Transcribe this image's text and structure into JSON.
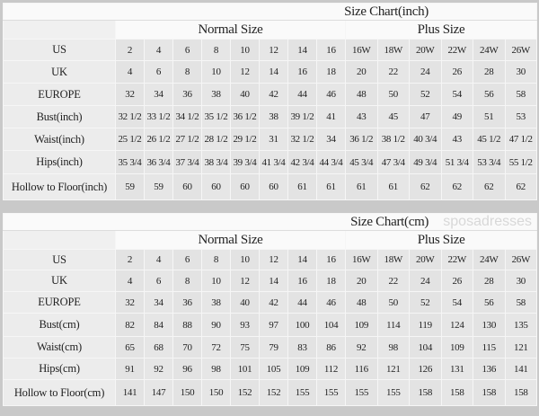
{
  "charts": [
    {
      "title": "Size Chart(inch)",
      "normal_label": "Normal Size",
      "plus_label": "Plus Size",
      "rows": [
        {
          "label": "US",
          "normal": [
            "2",
            "4",
            "6",
            "8",
            "10",
            "12",
            "14",
            "16"
          ],
          "plus": [
            "16W",
            "18W",
            "20W",
            "22W",
            "24W",
            "26W"
          ]
        },
        {
          "label": "UK",
          "normal": [
            "4",
            "6",
            "8",
            "10",
            "12",
            "14",
            "16",
            "18"
          ],
          "plus": [
            "20",
            "22",
            "24",
            "26",
            "28",
            "30"
          ]
        },
        {
          "label": "EUROPE",
          "normal": [
            "32",
            "34",
            "36",
            "38",
            "40",
            "42",
            "44",
            "46"
          ],
          "plus": [
            "48",
            "50",
            "52",
            "54",
            "56",
            "58"
          ]
        },
        {
          "label": "Bust(inch)",
          "normal": [
            "32 1/2",
            "33 1/2",
            "34 1/2",
            "35 1/2",
            "36 1/2",
            "38",
            "39 1/2",
            "41"
          ],
          "plus": [
            "43",
            "45",
            "47",
            "49",
            "51",
            "53"
          ]
        },
        {
          "label": "Waist(inch)",
          "normal": [
            "25 1/2",
            "26 1/2",
            "27 1/2",
            "28 1/2",
            "29 1/2",
            "31",
            "32 1/2",
            "34"
          ],
          "plus": [
            "36 1/2",
            "38 1/2",
            "40 3/4",
            "43",
            "45 1/2",
            "47 1/2"
          ]
        },
        {
          "label": "Hips(inch)",
          "normal": [
            "35 3/4",
            "36 3/4",
            "37 3/4",
            "38 3/4",
            "39 3/4",
            "41 3/4",
            "42 3/4",
            "44 3/4"
          ],
          "plus": [
            "45 3/4",
            "47 3/4",
            "49 3/4",
            "51 3/4",
            "53 3/4",
            "55 1/2"
          ]
        },
        {
          "label": "Hollow to Floor(inch)",
          "normal": [
            "59",
            "59",
            "60",
            "60",
            "60",
            "60",
            "61",
            "61"
          ],
          "plus": [
            "61",
            "61",
            "62",
            "62",
            "62",
            "62"
          ]
        }
      ]
    },
    {
      "title": "Size Chart(cm)",
      "normal_label": "Normal Size",
      "plus_label": "Plus Size",
      "rows": [
        {
          "label": "US",
          "normal": [
            "2",
            "4",
            "6",
            "8",
            "10",
            "12",
            "14",
            "16"
          ],
          "plus": [
            "16W",
            "18W",
            "20W",
            "22W",
            "24W",
            "26W"
          ]
        },
        {
          "label": "UK",
          "normal": [
            "4",
            "6",
            "8",
            "10",
            "12",
            "14",
            "16",
            "18"
          ],
          "plus": [
            "20",
            "22",
            "24",
            "26",
            "28",
            "30"
          ]
        },
        {
          "label": "EUROPE",
          "normal": [
            "32",
            "34",
            "36",
            "38",
            "40",
            "42",
            "44",
            "46"
          ],
          "plus": [
            "48",
            "50",
            "52",
            "54",
            "56",
            "58"
          ]
        },
        {
          "label": "Bust(cm)",
          "normal": [
            "82",
            "84",
            "88",
            "90",
            "93",
            "97",
            "100",
            "104"
          ],
          "plus": [
            "109",
            "114",
            "119",
            "124",
            "130",
            "135"
          ]
        },
        {
          "label": "Waist(cm)",
          "normal": [
            "65",
            "68",
            "70",
            "72",
            "75",
            "79",
            "83",
            "86"
          ],
          "plus": [
            "92",
            "98",
            "104",
            "109",
            "115",
            "121"
          ]
        },
        {
          "label": "Hips(cm)",
          "normal": [
            "91",
            "92",
            "96",
            "98",
            "101",
            "105",
            "109",
            "112"
          ],
          "plus": [
            "116",
            "121",
            "126",
            "131",
            "136",
            "141"
          ]
        },
        {
          "label": "Hollow to Floor(cm)",
          "normal": [
            "141",
            "147",
            "150",
            "150",
            "152",
            "152",
            "155",
            "155"
          ],
          "plus": [
            "155",
            "155",
            "158",
            "158",
            "158",
            "158"
          ]
        }
      ]
    }
  ],
  "watermark": "sposadresses"
}
